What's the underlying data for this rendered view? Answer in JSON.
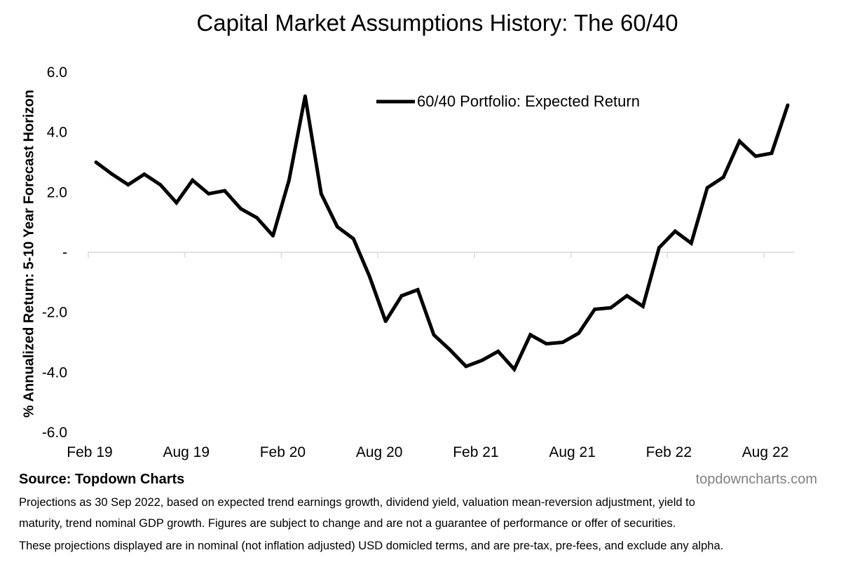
{
  "chart_data": {
    "type": "line",
    "title": "Capital Market Assumptions History: The 60/40",
    "ylabel": "% Annualized Return: 5-10 Year Forecast Horizon",
    "xlabel": "",
    "ylim": [
      -6.0,
      6.0
    ],
    "ytick_values": [
      6,
      4,
      2,
      0,
      -2,
      -4,
      -6
    ],
    "ytick_labels": [
      "6.0",
      "4.0",
      "2.0",
      "-",
      "-2.0",
      "-4.0",
      "-6.0"
    ],
    "xtick_labels": [
      "Feb 19",
      "Aug 19",
      "Feb 20",
      "Aug 20",
      "Feb 21",
      "Aug 21",
      "Feb 22",
      "Aug 22"
    ],
    "xtick_index": [
      0,
      6,
      12,
      18,
      24,
      30,
      36,
      42
    ],
    "legend_position": "top-center",
    "series": [
      {
        "name": "60/40 Portfolio: Expected Return",
        "color": "#000000",
        "values": [
          3.0,
          2.6,
          2.25,
          2.6,
          2.25,
          1.65,
          2.4,
          1.95,
          2.05,
          1.45,
          1.15,
          0.55,
          2.4,
          5.2,
          1.95,
          0.85,
          0.45,
          -0.8,
          -2.3,
          -1.45,
          -1.25,
          -2.75,
          -3.25,
          -3.8,
          -3.6,
          -3.3,
          -3.9,
          -2.75,
          -3.05,
          -3.0,
          -2.7,
          -1.9,
          -1.85,
          -1.45,
          -1.8,
          0.15,
          0.7,
          0.3,
          2.15,
          2.5,
          3.7,
          3.2,
          3.3,
          4.9
        ]
      }
    ]
  },
  "source_label": "Source: Topdown Charts",
  "watermark": "topdowncharts.com",
  "notes": [
    "Projections as 30 Sep 2022, based on expected trend earnings growth, dividend yield, valuation mean-reversion adjustment, yield to",
    "maturity, trend nominal GDP growth.  Figures are subject to change and are not a guarantee of performance or offer of securities.",
    "These projections displayed are in nominal (not inflation adjusted) USD domicled terms, and are pre-tax, pre-fees, and exclude any alpha."
  ]
}
